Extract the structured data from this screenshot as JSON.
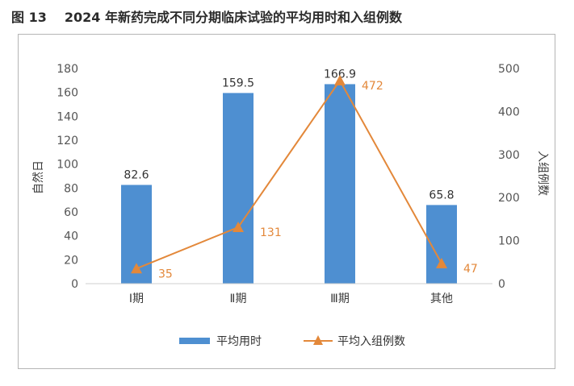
{
  "figure": {
    "number": "图 13",
    "caption": "2024 年新药完成不同分期临床试验的平均用时和入组例数"
  },
  "colors": {
    "bar": "#4e8fd1",
    "line": "#e3883a"
  },
  "chart_data": {
    "type": "bar",
    "categories": [
      "Ⅰ期",
      "Ⅱ期",
      "Ⅲ期",
      "其他"
    ],
    "series": [
      {
        "name": "平均用时",
        "type": "bar",
        "axis": "left",
        "values": [
          82.6,
          159.5,
          166.9,
          65.8
        ]
      },
      {
        "name": "平均入组例数",
        "type": "line",
        "axis": "right",
        "values": [
          35,
          131,
          472,
          47
        ]
      }
    ],
    "ylabel": "自然日",
    "y2label": "入组例数",
    "ylim": [
      0,
      180
    ],
    "yticks": [
      0,
      20,
      40,
      60,
      80,
      100,
      120,
      140,
      160,
      180
    ],
    "y2lim": [
      0,
      500
    ],
    "y2ticks": [
      0,
      100,
      200,
      300,
      400,
      500
    ],
    "grid": false,
    "legend": "bottom"
  }
}
